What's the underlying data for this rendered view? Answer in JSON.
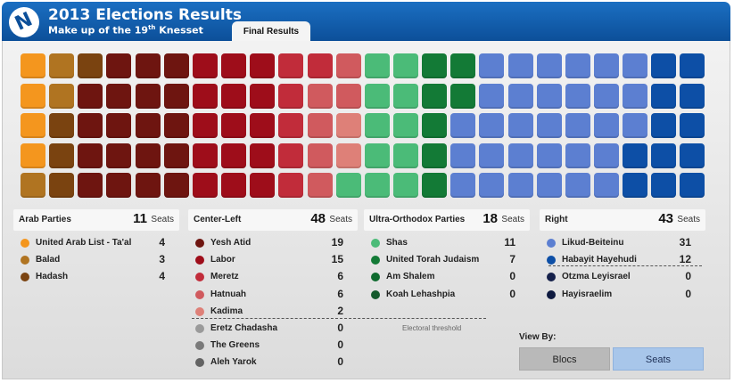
{
  "header": {
    "title": "2013 Elections Results",
    "subtitle": "Make up of the 19th Knesset",
    "tab_final": "Final Results"
  },
  "colors": {
    "header": "#0c4f99",
    "seat_active_button": "#a8c6ea"
  },
  "seat_grid": {
    "rows": 5,
    "columns": 24,
    "fill_order": "column-major, left to right",
    "sequence": [
      {
        "party": "United Arab List - Ta'al",
        "seats": 4,
        "color": "#f4961e"
      },
      {
        "party": "Balad",
        "seats": 3,
        "color": "#b07421"
      },
      {
        "party": "Hadash",
        "seats": 4,
        "color": "#7a4310"
      },
      {
        "party": "Yesh Atid",
        "seats": 19,
        "color": "#6e1510"
      },
      {
        "party": "Labor",
        "seats": 15,
        "color": "#9e0d1a"
      },
      {
        "party": "Meretz",
        "seats": 6,
        "color": "#c12c3a"
      },
      {
        "party": "Hatnuah",
        "seats": 6,
        "color": "#d05a5e"
      },
      {
        "party": "Kadima",
        "seats": 2,
        "color": "#de8078"
      },
      {
        "party": "Shas",
        "seats": 11,
        "color": "#4bbb78"
      },
      {
        "party": "United Torah Judaism",
        "seats": 7,
        "color": "#137a36"
      },
      {
        "party": "Likud-Beiteinu",
        "seats": 31,
        "color": "#5c7fd1"
      },
      {
        "party": "Habayit Hayehudi",
        "seats": 12,
        "color": "#0d4fa6"
      }
    ]
  },
  "blocs": [
    {
      "name": "Arab Parties",
      "total": "11",
      "unit": "Seats",
      "parties": [
        {
          "name": "United Arab List - Ta'al",
          "seats": "4",
          "color": "#f4961e"
        },
        {
          "name": "Balad",
          "seats": "3",
          "color": "#b07421"
        },
        {
          "name": "Hadash",
          "seats": "4",
          "color": "#7a4310"
        }
      ]
    },
    {
      "name": "Center-Left",
      "total": "48",
      "unit": "Seats",
      "parties": [
        {
          "name": "Yesh Atid",
          "seats": "19",
          "color": "#6e1510"
        },
        {
          "name": "Labor",
          "seats": "15",
          "color": "#9e0d1a"
        },
        {
          "name": "Meretz",
          "seats": "6",
          "color": "#c12c3a"
        },
        {
          "name": "Hatnuah",
          "seats": "6",
          "color": "#d05a5e"
        },
        {
          "name": "Kadima",
          "seats": "2",
          "color": "#de8078"
        },
        {
          "name": "Eretz Chadasha",
          "seats": "0",
          "color": "#9a9a9a"
        },
        {
          "name": "The Greens",
          "seats": "0",
          "color": "#7a7a7a"
        },
        {
          "name": "Aleh Yarok",
          "seats": "0",
          "color": "#636363"
        }
      ]
    },
    {
      "name": "Ultra-Orthodox Parties",
      "total": "18",
      "unit": "Seats",
      "parties": [
        {
          "name": "Shas",
          "seats": "11",
          "color": "#4bbb78"
        },
        {
          "name": "United Torah Judaism",
          "seats": "7",
          "color": "#137a36"
        },
        {
          "name": "Am Shalem",
          "seats": "0",
          "color": "#0e6a2e"
        },
        {
          "name": "Koah Lehashpia",
          "seats": "0",
          "color": "#145a2c"
        }
      ]
    },
    {
      "name": "Right",
      "total": "43",
      "unit": "Seats",
      "parties": [
        {
          "name": "Likud-Beiteinu",
          "seats": "31",
          "color": "#5c7fd1"
        },
        {
          "name": "Habayit Hayehudi",
          "seats": "12",
          "color": "#0d4fa6"
        },
        {
          "name": "Otzma Leyisrael",
          "seats": "0",
          "color": "#14204a"
        },
        {
          "name": "Hayisraelim",
          "seats": "0",
          "color": "#0e1a40"
        }
      ]
    }
  ],
  "threshold_label": "Electoral threshold",
  "view_by": {
    "label": "View By:",
    "options": [
      "Blocs",
      "Seats"
    ],
    "selected": "Seats"
  }
}
